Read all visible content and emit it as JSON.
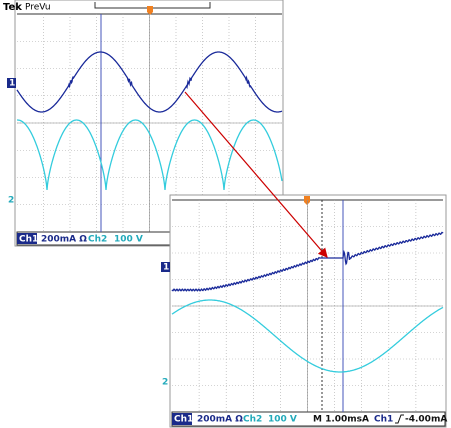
{
  "scope_1": {
    "brand": "Tek",
    "mode": "PreVu",
    "channel_markers": [
      "1",
      "2"
    ],
    "status": {
      "ch1_label": "Ch1",
      "ch1_scale": "200mA Ω",
      "ch2_label": "Ch2",
      "ch2_scale": "100 V"
    }
  },
  "scope_2": {
    "channel_markers": [
      "1",
      "2"
    ],
    "status": {
      "ch1_label": "Ch1",
      "ch1_scale": "200mA Ω",
      "ch2_label": "Ch2",
      "ch2_scale": "100 V",
      "timebase": "M 1.00ms",
      "trigger_mode": "A",
      "trigger_source": "Ch1",
      "trigger_level": "-4.00mA"
    }
  }
}
